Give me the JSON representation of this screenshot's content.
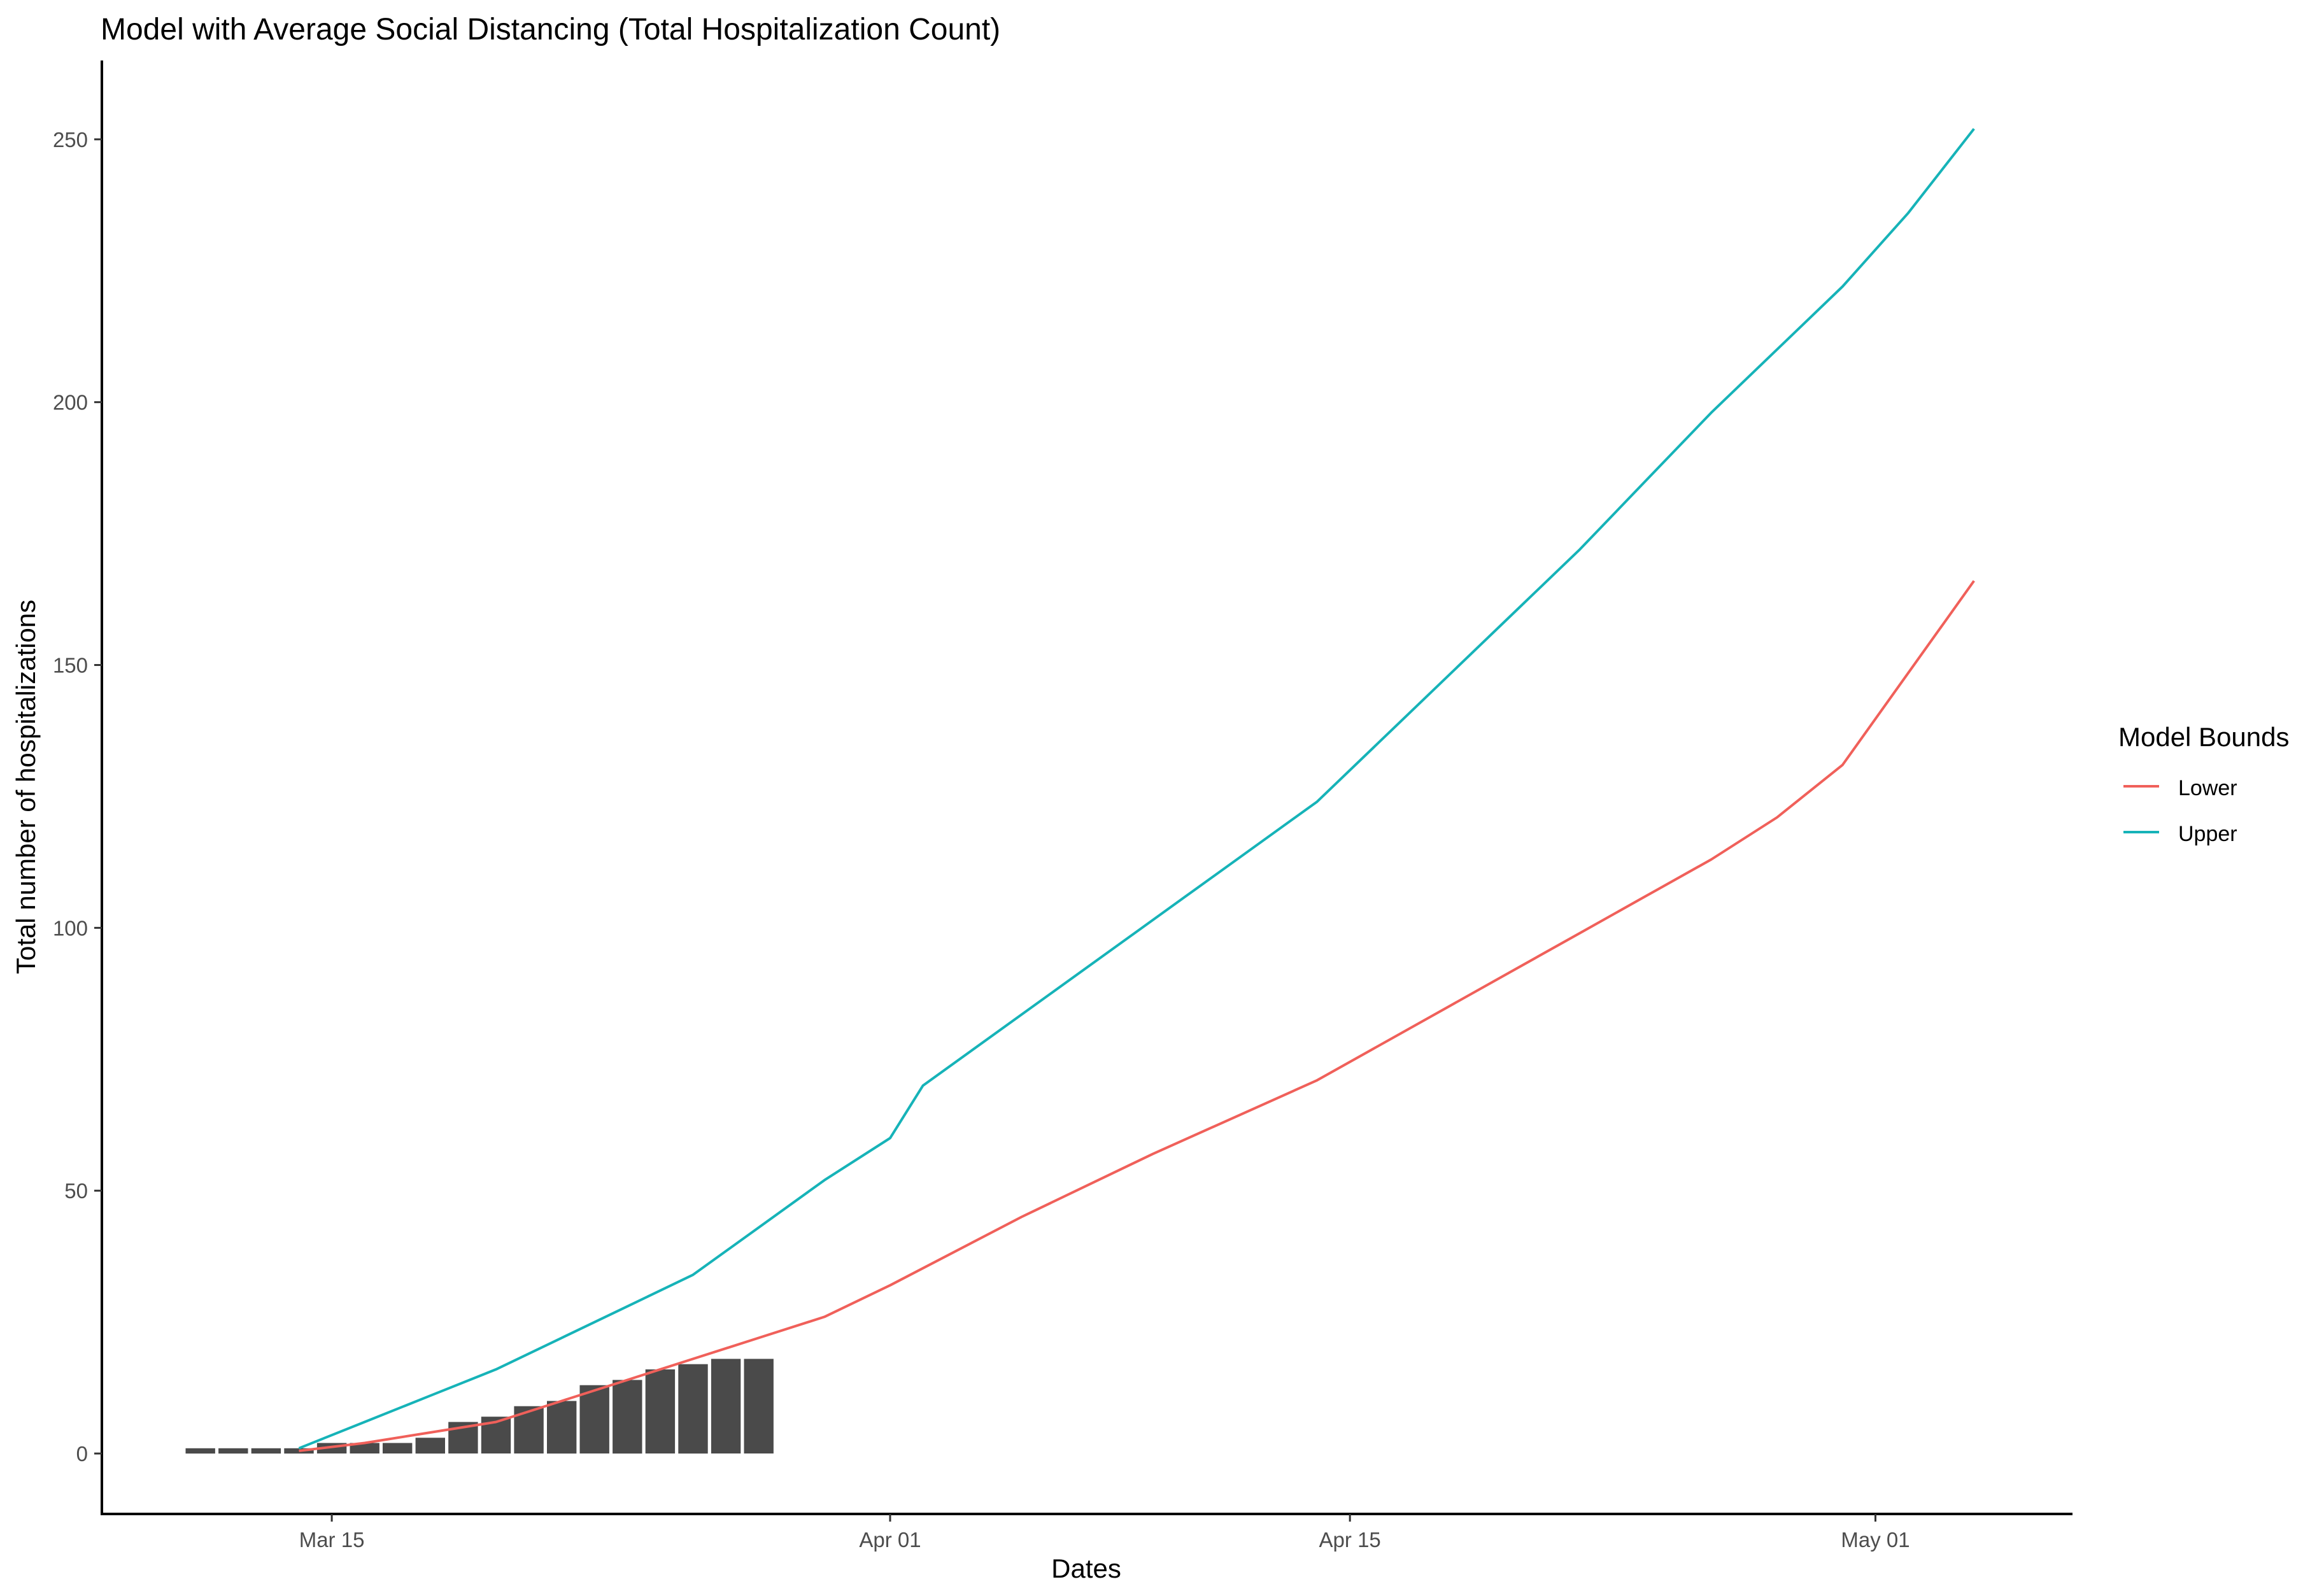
{
  "chart_data": {
    "type": "bar+line",
    "title": "Model with Average Social Distancing (Total Hospitalization Count)",
    "xlabel": "Dates",
    "ylabel": "Total number of hospitalizations",
    "x_ticks": [
      {
        "label": "Mar 15",
        "date": "2020-03-15"
      },
      {
        "label": "Apr 01",
        "date": "2020-04-01"
      },
      {
        "label": "Apr 15",
        "date": "2020-04-15"
      },
      {
        "label": "May 01",
        "date": "2020-05-01"
      }
    ],
    "y_ticks": [
      0,
      50,
      100,
      150,
      200,
      250
    ],
    "xlim": [
      "2020-03-08",
      "2020-05-07"
    ],
    "ylim": [
      -11.5,
      265
    ],
    "grid": false,
    "legend": {
      "title": "Model Bounds",
      "position": "right",
      "entries": [
        "Lower",
        "Upper"
      ]
    },
    "bars": {
      "color": "#4a4a4a",
      "x": [
        "2020-03-11",
        "2020-03-12",
        "2020-03-13",
        "2020-03-14",
        "2020-03-15",
        "2020-03-16",
        "2020-03-17",
        "2020-03-18",
        "2020-03-19",
        "2020-03-20",
        "2020-03-21",
        "2020-03-22",
        "2020-03-23",
        "2020-03-24",
        "2020-03-25",
        "2020-03-26",
        "2020-03-27",
        "2020-03-28"
      ],
      "values": [
        1,
        1,
        1,
        1,
        2,
        2,
        2,
        3,
        6,
        7,
        9,
        10,
        13,
        14,
        16,
        17,
        18,
        18
      ]
    },
    "series": [
      {
        "name": "Lower",
        "color": "#f0605a",
        "x": [
          "2020-03-14",
          "2020-03-16",
          "2020-03-18",
          "2020-03-20",
          "2020-03-22",
          "2020-03-24",
          "2020-03-26",
          "2020-03-28",
          "2020-03-30",
          "2020-04-01",
          "2020-04-05",
          "2020-04-09",
          "2020-04-14",
          "2020-04-18",
          "2020-04-22",
          "2020-04-24",
          "2020-04-26",
          "2020-04-28",
          "2020-04-30",
          "2020-05-04"
        ],
        "values": [
          0.5,
          2,
          4,
          6,
          10,
          14,
          18,
          22,
          26,
          32,
          45,
          57,
          71,
          85,
          99,
          106,
          113,
          121,
          131,
          166
        ]
      },
      {
        "name": "Upper",
        "color": "#16b3b8",
        "x": [
          "2020-03-14",
          "2020-03-16",
          "2020-03-18",
          "2020-03-20",
          "2020-03-22",
          "2020-03-24",
          "2020-03-26",
          "2020-03-28",
          "2020-03-30",
          "2020-04-01",
          "2020-04-02",
          "2020-04-06",
          "2020-04-10",
          "2020-04-14",
          "2020-04-16",
          "2020-04-20",
          "2020-04-22",
          "2020-04-24",
          "2020-04-26",
          "2020-04-28",
          "2020-04-30",
          "2020-05-02",
          "2020-05-04"
        ],
        "values": [
          1,
          6,
          11,
          16,
          22,
          28,
          34,
          43,
          52,
          60,
          70,
          88,
          106,
          124,
          136,
          160,
          172,
          185,
          198,
          210,
          222,
          236,
          252
        ]
      }
    ]
  }
}
